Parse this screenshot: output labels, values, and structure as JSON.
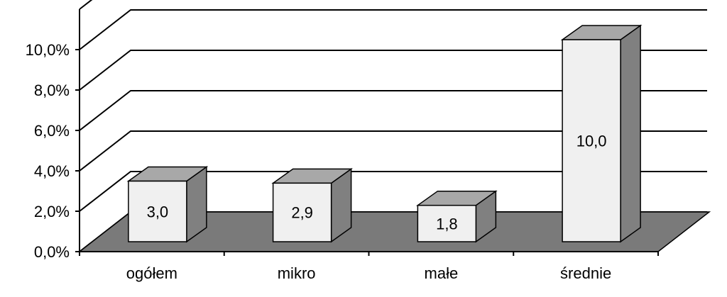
{
  "chart_data": {
    "type": "bar",
    "title": "",
    "xlabel": "",
    "ylabel": "",
    "categories": [
      "ogółem",
      "mikro",
      "małe",
      "średnie"
    ],
    "values": [
      3.0,
      2.9,
      1.8,
      10.0
    ],
    "data_labels": [
      "3,0",
      "2,9",
      "1,8",
      "10,0"
    ],
    "ylim": [
      0,
      10
    ],
    "yticks": [
      0,
      2,
      4,
      6,
      8,
      10
    ],
    "ytick_labels": [
      "0,0%",
      "2,0%",
      "4,0%",
      "6,0%",
      "8,0%",
      "10,0%"
    ],
    "grid": true,
    "style": "3d",
    "colors": {
      "bar_front": "#f0f0f0",
      "bar_top": "#a8a8a8",
      "bar_side": "#808080",
      "floor": "#7a7a7a",
      "gridline": "#000000"
    }
  }
}
